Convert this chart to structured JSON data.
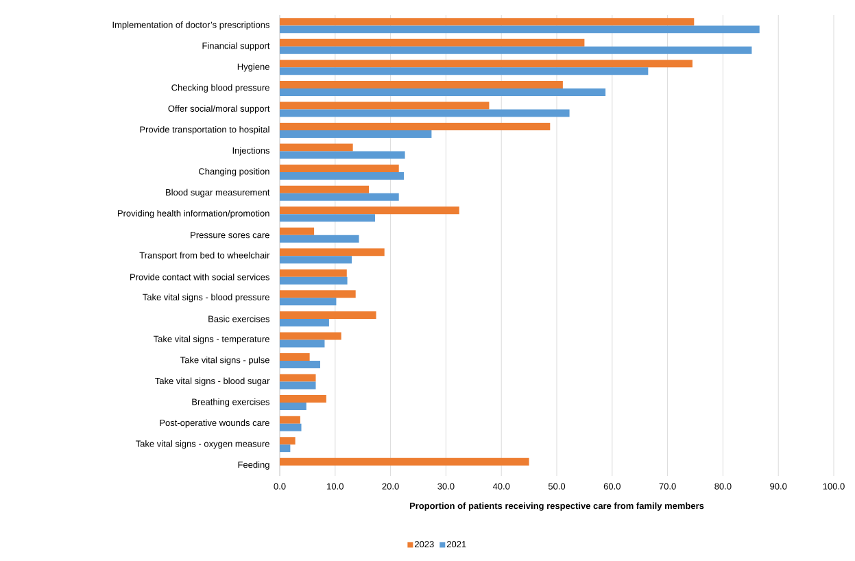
{
  "chart_data": {
    "type": "bar",
    "orientation": "horizontal",
    "xlabel": "Proportion of patients receiving respective care from family members",
    "categories": [
      "Implementation of doctor’s prescriptions",
      "Financial support",
      "Hygiene",
      "Checking blood pressure",
      "Offer social/moral support",
      "Provide transportation to hospital",
      "Injections",
      "Changing position",
      "Blood sugar measurement",
      "Providing health information/promotion",
      "Pressure sores care",
      "Transport from bed to wheelchair",
      "Provide contact with social services",
      "Take vital signs - blood pressure",
      "Basic exercises",
      "Take vital signs - temperature",
      "Take vital signs - pulse",
      "Take vital signs - blood sugar",
      "Breathing exercises",
      "Post-operative wounds care",
      "Take vital signs - oxygen measure",
      "Feeding"
    ],
    "series": [
      {
        "name": "2023",
        "color": "#ed7d31",
        "values": [
          74.8,
          55.0,
          74.5,
          51.1,
          37.8,
          48.8,
          13.2,
          21.5,
          16.1,
          32.4,
          6.2,
          18.9,
          12.1,
          13.7,
          17.4,
          11.1,
          5.4,
          6.5,
          8.4,
          3.7,
          2.8,
          45.0
        ]
      },
      {
        "name": "2021",
        "color": "#5b9bd5",
        "values": [
          86.6,
          85.2,
          66.5,
          58.8,
          52.3,
          27.4,
          22.6,
          22.4,
          21.5,
          17.2,
          14.3,
          13.0,
          12.2,
          10.2,
          8.9,
          8.1,
          7.3,
          6.5,
          4.8,
          3.9,
          1.9,
          null
        ]
      }
    ],
    "xlim": [
      0,
      100
    ],
    "xticks": [
      {
        "value": 0,
        "label": "0.0"
      },
      {
        "value": 10,
        "label": "10.0"
      },
      {
        "value": 20,
        "label": "20.0"
      },
      {
        "value": 30,
        "label": "30.0"
      },
      {
        "value": 40,
        "label": "40.0"
      },
      {
        "value": 50,
        "label": "50.0"
      },
      {
        "value": 60,
        "label": "60.0"
      },
      {
        "value": 70,
        "label": "70.0"
      },
      {
        "value": 80,
        "label": "80.0"
      },
      {
        "value": 90,
        "label": "90.0"
      },
      {
        "value": 100,
        "label": "100.0"
      }
    ],
    "grid": "x",
    "legend": "bottom"
  }
}
